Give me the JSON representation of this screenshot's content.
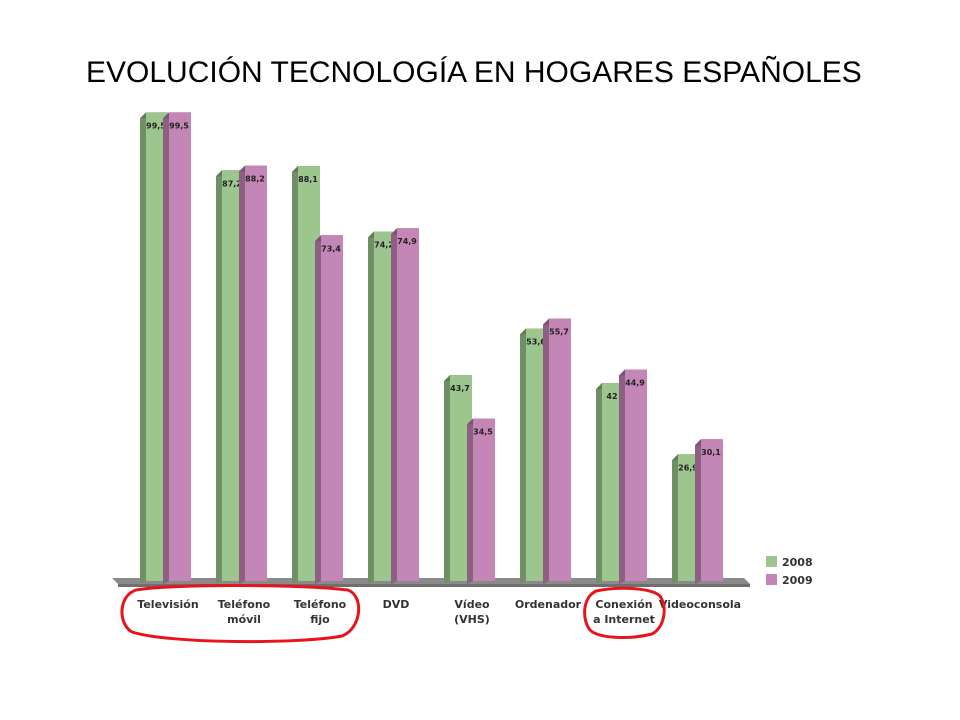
{
  "slide": {
    "title": "EVOLUCIÓN TECNOLOGÍA EN HOGARES ESPAÑOLES"
  },
  "chart_data": {
    "type": "bar",
    "title": "EVOLUCIÓN TECNOLOGÍA EN HOGARES ESPAÑOLES",
    "xlabel": "",
    "ylabel": "",
    "ylim": [
      0,
      100
    ],
    "grid": false,
    "legend_position": "bottom-right",
    "categories": [
      [
        "Televisión"
      ],
      [
        "Teléfono",
        "móvil"
      ],
      [
        "Teléfono",
        "fijo"
      ],
      [
        "DVD"
      ],
      [
        "Vídeo",
        "(VHS)"
      ],
      [
        "Ordenador"
      ],
      [
        "Conexión",
        "a Internet"
      ],
      [
        "Videoconsola"
      ]
    ],
    "series": [
      {
        "name": "2008",
        "color": "#9cc68e",
        "values": [
          99.5,
          87.2,
          88.1,
          74.2,
          43.7,
          53.6,
          42,
          26.9
        ],
        "labels": [
          "99,5",
          "87,2",
          "88,1",
          "74,2",
          "43,7",
          "53,6",
          "42",
          "26,9"
        ]
      },
      {
        "name": "2009",
        "color": "#c486b6",
        "values": [
          99.5,
          88.2,
          73.4,
          74.9,
          34.5,
          55.7,
          44.9,
          30.1
        ],
        "labels": [
          "99,5",
          "88,2",
          "73,4",
          "74,9",
          "34,5",
          "55,7",
          "44,9",
          "30,1"
        ]
      }
    ],
    "highlighted_categories": [
      "Televisión",
      "Teléfono móvil",
      "Teléfono fijo",
      "Conexión a Internet"
    ],
    "highlight_color": "#e8141b"
  }
}
